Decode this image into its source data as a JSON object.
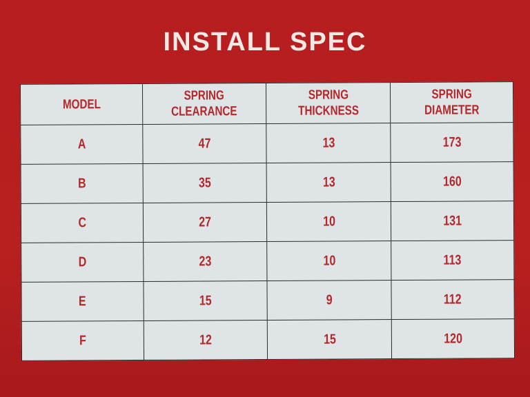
{
  "title": "INSTALL SPEC",
  "table": {
    "headers": [
      [
        "MODEL"
      ],
      [
        "SPRING",
        "CLEARANCE"
      ],
      [
        "SPRING",
        "THICKNESS"
      ],
      [
        "SPRING",
        "DIAMETER"
      ]
    ],
    "rows": [
      [
        "A",
        "47",
        "13",
        "173"
      ],
      [
        "B",
        "35",
        "13",
        "160"
      ],
      [
        "C",
        "27",
        "10",
        "131"
      ],
      [
        "D",
        "23",
        "10",
        "113"
      ],
      [
        "E",
        "15",
        "9",
        "112"
      ],
      [
        "F",
        "12",
        "15",
        "120"
      ]
    ]
  },
  "colors": {
    "background": "#b81e20",
    "table_fill": "#dfe4e7",
    "text": "#b3282b",
    "title": "#f1e9e6"
  }
}
